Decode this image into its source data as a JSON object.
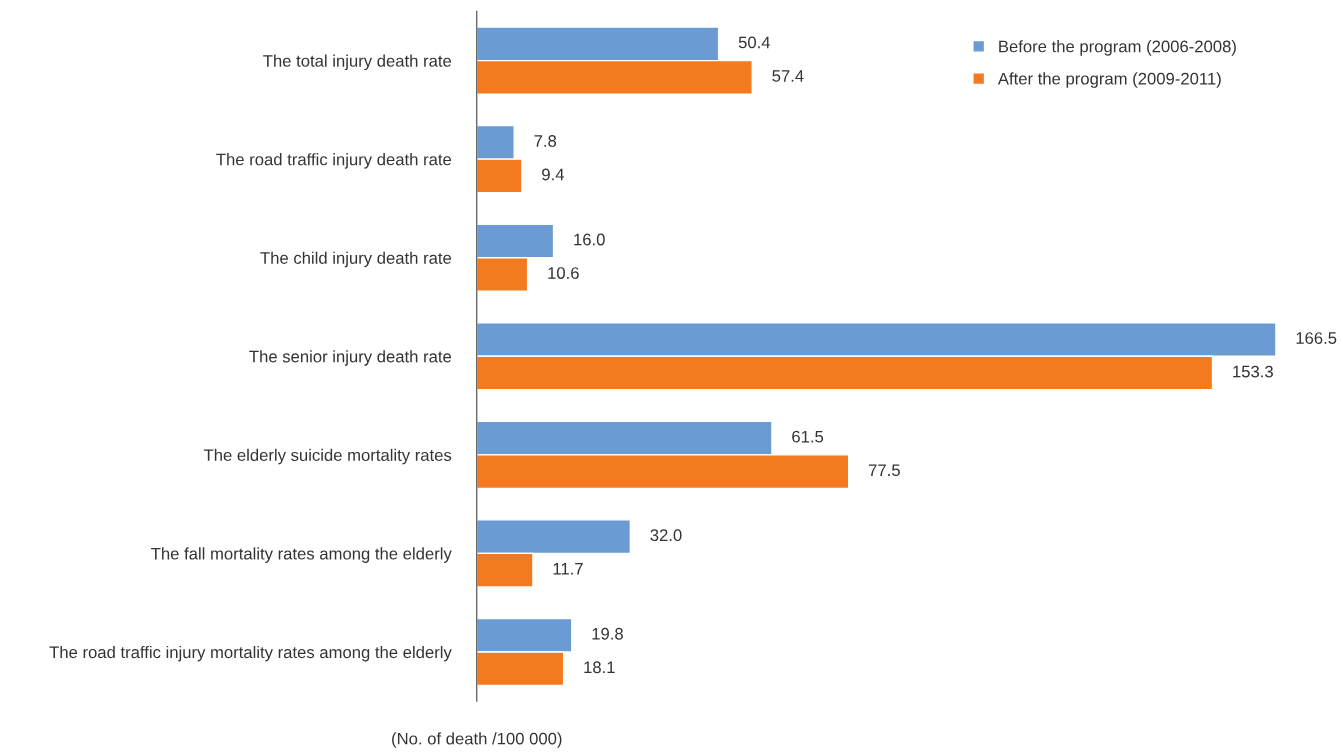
{
  "chart_data": {
    "type": "bar",
    "orientation": "horizontal",
    "xlabel": "(No. of death /100 000)",
    "categories": [
      "The total injury death rate",
      "The road traffic injury death rate",
      "The child injury death rate",
      "The senior injury death rate",
      "The elderly suicide mortality rates",
      "The fall mortality rates among the elderly",
      "The road traffic injury mortality rates among the elderly"
    ],
    "series": [
      {
        "name": "Before the program (2006-2008)",
        "color": "#6a9bd3",
        "values": [
          50.4,
          7.8,
          16.0,
          166.5,
          61.5,
          32.0,
          19.8
        ],
        "value_labels": [
          "50.4",
          "7.8",
          "16.0",
          "166.5",
          "61.5",
          "32.0",
          "19.8"
        ]
      },
      {
        "name": "After the program (2009-2011)",
        "color": "#f47a20",
        "values": [
          57.4,
          9.4,
          10.6,
          153.3,
          77.5,
          11.7,
          18.1
        ],
        "value_labels": [
          "57.4",
          "9.4",
          "10.6",
          "153.3",
          "77.5",
          "11.7",
          "18.1"
        ]
      }
    ],
    "legend": "top right",
    "grid": false,
    "tick_labels": "y"
  }
}
